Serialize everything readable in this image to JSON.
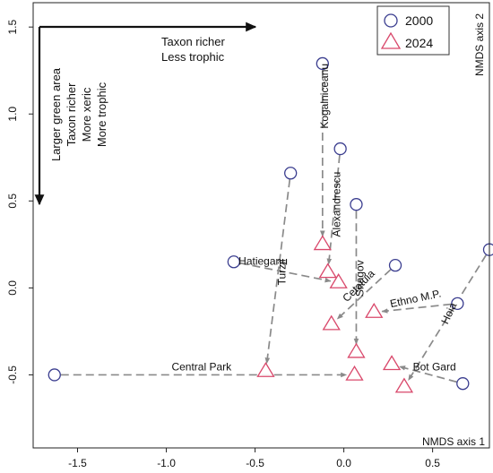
{
  "chart_data": {
    "type": "scatter",
    "xlabel": "NMDS axis 1",
    "ylabel": "NMDS axis 2",
    "xlim": [
      -1.75,
      0.82
    ],
    "ylim": [
      -0.92,
      1.64
    ],
    "xticks": [
      -1.5,
      -1.0,
      -0.5,
      0.0,
      0.5
    ],
    "xtick_labels": [
      "-1.5",
      "-1.0",
      "-0.5",
      "0.0",
      "0.5"
    ],
    "yticks": [
      -0.5,
      0.0,
      0.5,
      1.0,
      1.5
    ],
    "ytick_labels": [
      "-0.5",
      "0.0",
      "0.5",
      "1.0",
      "1.5"
    ],
    "grid": false,
    "legend_position": "top-right",
    "series": [
      {
        "name": "2000",
        "marker": "circle",
        "color": "#3a3d8f"
      },
      {
        "name": "2024",
        "marker": "triangle",
        "color": "#d9486b"
      }
    ],
    "sites": [
      {
        "name": "Kogalniceanu",
        "x2000": -0.12,
        "y2000": 1.29,
        "x2024": -0.12,
        "y2024": 0.25
      },
      {
        "name": "Alexandrescu",
        "x2000": -0.02,
        "y2000": 0.8,
        "x2024": -0.09,
        "y2024": 0.09
      },
      {
        "name": "Snagov",
        "x2000": 0.07,
        "y2000": 0.48,
        "x2024": 0.07,
        "y2024": -0.37
      },
      {
        "name": "Cetatuia",
        "x2000": 0.29,
        "y2000": 0.13,
        "x2024": -0.07,
        "y2024": -0.21
      },
      {
        "name": "Hatieganu",
        "x2000": -0.62,
        "y2000": 0.15,
        "x2024": -0.03,
        "y2024": 0.03
      },
      {
        "name": "Turzii",
        "x2000": -0.3,
        "y2000": 0.66,
        "x2024": -0.44,
        "y2024": -0.48
      },
      {
        "name": "Central Park",
        "x2000": -1.63,
        "y2000": -0.5,
        "x2024": 0.06,
        "y2024": -0.5
      },
      {
        "name": "Ethno M.P.",
        "x2000": 0.64,
        "y2000": -0.09,
        "x2024": 0.17,
        "y2024": -0.14
      },
      {
        "name": "Hoia",
        "x2000": 0.82,
        "y2000": 0.22,
        "x2024": 0.34,
        "y2024": -0.57
      },
      {
        "name": "Bot Gard",
        "x2000": 0.67,
        "y2000": -0.55,
        "x2024": 0.27,
        "y2024": -0.44
      }
    ],
    "annotations": {
      "horizontal": [
        "Taxon richer",
        "Less trophic"
      ],
      "vertical": [
        "Larger green area",
        "Taxon richer",
        "More xeric",
        "More trophic"
      ]
    }
  }
}
